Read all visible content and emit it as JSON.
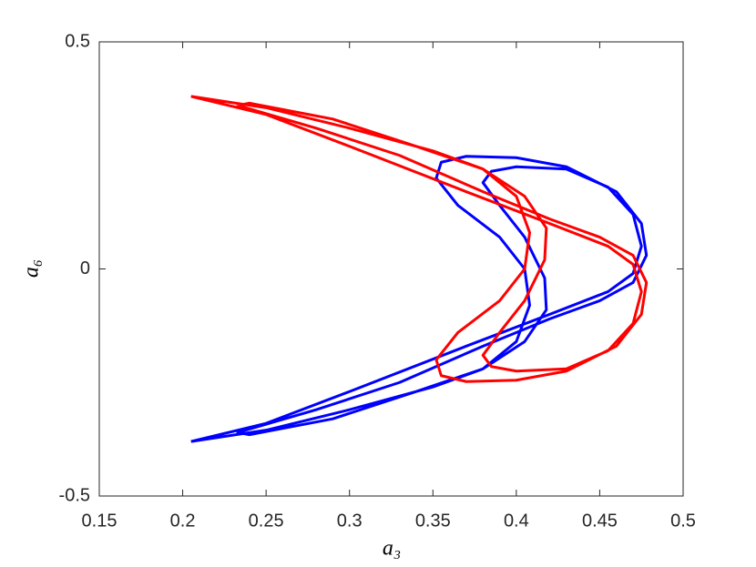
{
  "chart_data": {
    "type": "line",
    "x_label": "a₃",
    "y_label": "a₆",
    "xlim": [
      0.15,
      0.5
    ],
    "ylim": [
      -0.5,
      0.5
    ],
    "xticks": [
      0.15,
      0.2,
      0.25,
      0.3,
      0.35,
      0.4,
      0.45,
      0.5
    ],
    "yticks": [
      -0.5,
      0,
      0.5
    ],
    "series": [
      {
        "color": "#0000ff",
        "x": [
          0.205,
          0.25,
          0.3,
          0.35,
          0.38,
          0.4,
          0.408,
          0.405,
          0.39,
          0.365,
          0.352,
          0.355,
          0.37,
          0.4,
          0.43,
          0.46,
          0.475,
          0.478,
          0.47,
          0.45,
          0.42,
          0.38,
          0.33,
          0.28,
          0.233,
          0.24,
          0.29,
          0.34,
          0.38,
          0.405,
          0.418,
          0.417,
          0.405,
          0.39,
          0.38,
          0.385,
          0.4,
          0.43,
          0.455,
          0.47,
          0.475,
          0.47,
          0.455,
          0.42,
          0.37,
          0.3,
          0.25,
          0.205
        ],
        "values": [
          -0.38,
          -0.355,
          -0.31,
          -0.26,
          -0.22,
          -0.16,
          -0.08,
          0,
          0.07,
          0.14,
          0.2,
          0.235,
          0.248,
          0.245,
          0.225,
          0.17,
          0.1,
          0.03,
          -0.03,
          -0.07,
          -0.11,
          -0.17,
          -0.25,
          -0.31,
          -0.36,
          -0.365,
          -0.33,
          -0.27,
          -0.22,
          -0.16,
          -0.09,
          -0.02,
          0.07,
          0.14,
          0.19,
          0.215,
          0.225,
          0.22,
          0.18,
          0.12,
          0.05,
          -0.01,
          -0.05,
          -0.1,
          -0.17,
          -0.27,
          -0.34,
          -0.38
        ]
      },
      {
        "color": "#ff0000",
        "x": [
          0.205,
          0.25,
          0.3,
          0.35,
          0.38,
          0.4,
          0.408,
          0.405,
          0.39,
          0.365,
          0.352,
          0.355,
          0.37,
          0.4,
          0.43,
          0.46,
          0.475,
          0.478,
          0.47,
          0.45,
          0.42,
          0.38,
          0.33,
          0.28,
          0.233,
          0.24,
          0.29,
          0.34,
          0.38,
          0.405,
          0.418,
          0.417,
          0.405,
          0.39,
          0.38,
          0.385,
          0.4,
          0.43,
          0.455,
          0.47,
          0.475,
          0.47,
          0.455,
          0.42,
          0.37,
          0.3,
          0.25,
          0.205
        ],
        "values": [
          0.38,
          0.355,
          0.31,
          0.26,
          0.22,
          0.16,
          0.08,
          0,
          -0.07,
          -0.14,
          -0.2,
          -0.235,
          -0.248,
          -0.245,
          -0.225,
          -0.17,
          -0.1,
          -0.03,
          0.03,
          0.07,
          0.11,
          0.17,
          0.25,
          0.31,
          0.36,
          0.365,
          0.33,
          0.27,
          0.22,
          0.16,
          0.09,
          0.02,
          -0.07,
          -0.14,
          -0.19,
          -0.215,
          -0.225,
          -0.22,
          -0.18,
          -0.12,
          -0.05,
          0.01,
          0.05,
          0.1,
          0.17,
          0.27,
          0.34,
          0.38
        ]
      }
    ]
  }
}
